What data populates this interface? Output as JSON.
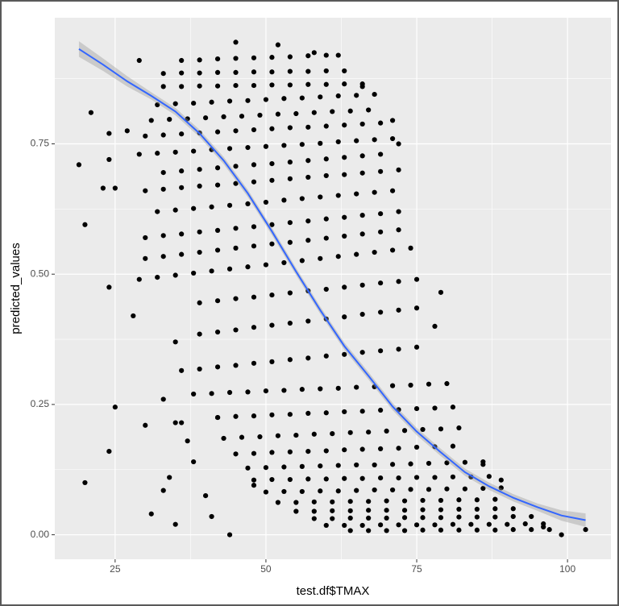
{
  "chart_data": {
    "type": "scatter",
    "xlabel": "test.df$TMAX",
    "ylabel": "predicted_values",
    "xlim": [
      15,
      107.2
    ],
    "ylim": [
      -0.047,
      0.992
    ],
    "xticks": [
      25,
      50,
      75,
      100
    ],
    "yticks": [
      {
        "value": 0,
        "label": "0.00"
      },
      {
        "value": 0.25,
        "label": "0.25"
      },
      {
        "value": 0.5,
        "label": "0.50"
      },
      {
        "value": 0.75,
        "label": "0.75"
      }
    ],
    "minor_xticks": [
      37.5,
      62.5,
      87.5
    ],
    "minor_yticks": [
      0.125,
      0.375,
      0.625,
      0.875
    ],
    "grid": true,
    "point_color": "#000000",
    "series": [
      {
        "x": [
          36,
          39,
          42,
          45,
          48,
          51,
          54,
          57,
          60
        ],
        "values": [
          0.91,
          0.911,
          0.913,
          0.914,
          0.915,
          0.916,
          0.917,
          0.919,
          0.92
        ]
      },
      {
        "x": [
          33,
          36,
          39,
          42,
          45,
          48,
          51,
          54,
          57,
          60,
          63
        ],
        "values": [
          0.885,
          0.886,
          0.886,
          0.887,
          0.887,
          0.888,
          0.888,
          0.889,
          0.889,
          0.89,
          0.89
        ]
      },
      {
        "x": [
          33,
          36,
          39,
          42,
          45,
          48,
          51,
          54,
          57,
          60,
          63,
          66
        ],
        "values": [
          0.86,
          0.86,
          0.861,
          0.861,
          0.862,
          0.862,
          0.863,
          0.863,
          0.864,
          0.864,
          0.865,
          0.865
        ]
      },
      {
        "x": [
          32,
          35,
          38,
          41,
          44,
          47,
          50,
          53,
          56,
          59,
          62,
          65,
          68
        ],
        "values": [
          0.825,
          0.827,
          0.828,
          0.83,
          0.832,
          0.833,
          0.835,
          0.837,
          0.838,
          0.84,
          0.842,
          0.843,
          0.845
        ]
      },
      {
        "x": [
          31,
          34,
          37,
          40,
          43,
          46,
          49,
          52,
          55,
          58,
          61,
          64,
          67
        ],
        "values": [
          0.795,
          0.797,
          0.798,
          0.8,
          0.802,
          0.803,
          0.805,
          0.807,
          0.808,
          0.81,
          0.812,
          0.813,
          0.815
        ]
      },
      {
        "x": [
          30,
          33,
          36,
          39,
          42,
          45,
          48,
          51,
          54,
          57,
          60,
          63,
          66,
          69
        ],
        "values": [
          0.765,
          0.767,
          0.769,
          0.771,
          0.773,
          0.775,
          0.777,
          0.779,
          0.781,
          0.782,
          0.784,
          0.786,
          0.788,
          0.79
        ]
      },
      {
        "x": [
          29,
          32,
          35,
          38,
          41,
          44,
          47,
          50,
          53,
          56,
          59,
          62,
          65,
          68,
          71
        ],
        "values": [
          0.73,
          0.732,
          0.734,
          0.736,
          0.739,
          0.741,
          0.743,
          0.745,
          0.747,
          0.749,
          0.751,
          0.754,
          0.756,
          0.758,
          0.76
        ]
      },
      {
        "x": [
          33,
          36,
          39,
          42,
          45,
          48,
          51,
          54,
          57,
          60,
          63,
          66,
          69
        ],
        "values": [
          0.695,
          0.698,
          0.701,
          0.704,
          0.707,
          0.71,
          0.712,
          0.715,
          0.718,
          0.721,
          0.724,
          0.727,
          0.73
        ]
      },
      {
        "x": [
          30,
          33,
          36,
          39,
          42,
          45,
          48,
          51,
          54,
          57,
          60,
          63,
          66,
          69,
          72
        ],
        "values": [
          0.66,
          0.663,
          0.666,
          0.669,
          0.671,
          0.674,
          0.677,
          0.68,
          0.683,
          0.686,
          0.689,
          0.691,
          0.694,
          0.697,
          0.7
        ]
      },
      {
        "x": [
          32,
          35,
          38,
          41,
          44,
          47,
          50,
          53,
          56,
          59,
          62,
          65,
          68,
          71
        ],
        "values": [
          0.62,
          0.623,
          0.626,
          0.629,
          0.632,
          0.635,
          0.638,
          0.642,
          0.645,
          0.648,
          0.651,
          0.654,
          0.657,
          0.66
        ]
      },
      {
        "x": [
          30,
          33,
          36,
          39,
          42,
          45,
          48,
          51,
          54,
          57,
          60,
          63,
          66,
          69,
          72
        ],
        "values": [
          0.57,
          0.574,
          0.577,
          0.581,
          0.584,
          0.588,
          0.591,
          0.595,
          0.599,
          0.602,
          0.606,
          0.609,
          0.613,
          0.616,
          0.62
        ]
      },
      {
        "x": [
          30,
          33,
          36,
          39,
          42,
          45,
          48,
          51,
          54,
          57,
          60,
          63,
          66,
          69,
          72
        ],
        "values": [
          0.53,
          0.534,
          0.538,
          0.542,
          0.546,
          0.55,
          0.554,
          0.558,
          0.561,
          0.565,
          0.569,
          0.573,
          0.577,
          0.581,
          0.585
        ]
      },
      {
        "x": [
          29,
          32,
          35,
          38,
          41,
          44,
          47,
          50,
          53,
          56,
          59,
          62,
          65,
          68,
          71,
          74
        ],
        "values": [
          0.49,
          0.494,
          0.498,
          0.502,
          0.506,
          0.51,
          0.514,
          0.518,
          0.522,
          0.526,
          0.53,
          0.534,
          0.538,
          0.542,
          0.546,
          0.55
        ]
      },
      {
        "x": [
          39,
          42,
          45,
          48,
          51,
          54,
          57,
          60,
          63,
          66,
          69,
          72,
          75
        ],
        "values": [
          0.445,
          0.449,
          0.453,
          0.456,
          0.46,
          0.464,
          0.468,
          0.471,
          0.475,
          0.479,
          0.483,
          0.486,
          0.49
        ]
      },
      {
        "x": [
          39,
          42,
          45,
          48,
          51,
          54,
          57,
          60,
          63,
          66,
          69,
          72,
          75
        ],
        "values": [
          0.385,
          0.389,
          0.393,
          0.398,
          0.402,
          0.406,
          0.41,
          0.414,
          0.418,
          0.423,
          0.427,
          0.431,
          0.435
        ]
      },
      {
        "x": [
          36,
          39,
          42,
          45,
          48,
          51,
          54,
          57,
          60,
          63,
          66,
          69,
          72,
          75
        ],
        "values": [
          0.315,
          0.318,
          0.322,
          0.325,
          0.329,
          0.332,
          0.336,
          0.339,
          0.343,
          0.346,
          0.35,
          0.353,
          0.356,
          0.36
        ]
      },
      {
        "x": [
          38,
          41,
          44,
          47,
          50,
          53,
          56,
          59,
          62,
          65,
          68,
          71,
          74,
          77,
          80
        ],
        "values": [
          0.27,
          0.271,
          0.273,
          0.274,
          0.276,
          0.277,
          0.279,
          0.28,
          0.281,
          0.283,
          0.284,
          0.286,
          0.287,
          0.289,
          0.29
        ]
      },
      {
        "x": [
          42,
          45,
          48,
          51,
          54,
          57,
          60,
          63,
          66,
          69,
          72,
          75,
          78,
          81
        ],
        "values": [
          0.225,
          0.227,
          0.228,
          0.23,
          0.231,
          0.233,
          0.234,
          0.236,
          0.237,
          0.239,
          0.24,
          0.242,
          0.243,
          0.245
        ]
      },
      {
        "x": [
          43,
          46,
          49,
          52,
          55,
          58,
          61,
          64,
          67,
          70,
          73,
          76,
          79,
          82
        ],
        "values": [
          0.185,
          0.187,
          0.188,
          0.19,
          0.191,
          0.193,
          0.194,
          0.196,
          0.197,
          0.199,
          0.2,
          0.202,
          0.203,
          0.205
        ]
      },
      {
        "x": [
          45,
          48,
          51,
          54,
          57,
          60,
          63,
          66,
          69,
          72,
          75,
          78,
          81
        ],
        "values": [
          0.155,
          0.156,
          0.158,
          0.159,
          0.16,
          0.161,
          0.163,
          0.164,
          0.165,
          0.166,
          0.168,
          0.169,
          0.17
        ]
      },
      {
        "x": [
          47,
          50,
          53,
          56,
          59,
          62,
          65,
          68,
          71,
          74,
          77,
          80,
          83,
          86
        ],
        "values": [
          0.128,
          0.129,
          0.13,
          0.131,
          0.132,
          0.133,
          0.134,
          0.134,
          0.135,
          0.136,
          0.137,
          0.138,
          0.139,
          0.14
        ]
      },
      {
        "x": [
          48,
          51,
          54,
          57,
          60,
          63,
          66,
          69,
          72,
          75,
          78,
          81,
          84,
          87
        ],
        "values": [
          0.105,
          0.106,
          0.106,
          0.107,
          0.107,
          0.108,
          0.108,
          0.109,
          0.109,
          0.11,
          0.11,
          0.111,
          0.111,
          0.112
        ]
      },
      {
        "x": [
          50,
          53,
          56,
          59,
          62,
          65,
          68,
          71,
          74,
          77,
          80,
          83,
          86,
          89
        ],
        "values": [
          0.082,
          0.083,
          0.083,
          0.084,
          0.084,
          0.085,
          0.086,
          0.086,
          0.087,
          0.087,
          0.088,
          0.088,
          0.089,
          0.09
        ]
      },
      {
        "x": [
          52,
          55,
          58,
          61,
          64,
          67,
          70,
          73,
          76,
          79,
          82,
          85,
          88
        ],
        "values": [
          0.062,
          0.062,
          0.063,
          0.063,
          0.064,
          0.064,
          0.065,
          0.065,
          0.066,
          0.066,
          0.067,
          0.067,
          0.068
        ]
      },
      {
        "x": [
          55,
          58,
          61,
          64,
          67,
          70,
          73,
          76,
          79,
          82,
          85,
          88,
          91
        ],
        "values": [
          0.045,
          0.045,
          0.046,
          0.046,
          0.047,
          0.047,
          0.047,
          0.048,
          0.048,
          0.049,
          0.049,
          0.05,
          0.05
        ]
      },
      {
        "x": [
          58,
          61,
          64,
          67,
          70,
          73,
          76,
          79,
          82,
          85,
          88,
          91,
          94
        ],
        "values": [
          0.031,
          0.031,
          0.032,
          0.032,
          0.032,
          0.033,
          0.033,
          0.033,
          0.034,
          0.034,
          0.034,
          0.035,
          0.035
        ]
      },
      {
        "x": [
          60,
          63,
          66,
          69,
          72,
          75,
          78,
          81,
          84,
          87,
          90,
          93,
          96
        ],
        "values": [
          0.018,
          0.018,
          0.018,
          0.019,
          0.019,
          0.019,
          0.019,
          0.02,
          0.02,
          0.02,
          0.02,
          0.021,
          0.021
        ]
      },
      {
        "x": [
          64,
          67,
          70,
          73,
          76,
          79,
          82,
          85,
          88,
          91,
          94,
          97
        ],
        "values": [
          0.008,
          0.008,
          0.008,
          0.008,
          0.009,
          0.009,
          0.009,
          0.009,
          0.009,
          0.01,
          0.01,
          0.01
        ]
      },
      {
        "x": [
          19,
          20,
          20,
          21,
          23,
          24,
          24,
          24,
          24,
          25,
          25,
          27,
          28,
          29,
          30,
          31,
          33,
          33,
          34,
          35,
          35,
          35,
          36,
          37,
          38,
          40,
          41,
          42,
          44,
          45,
          48,
          52,
          58,
          62,
          66,
          71,
          72,
          78,
          79,
          86,
          89,
          99,
          103,
          96
        ],
        "values": [
          0.71,
          0.595,
          0.1,
          0.81,
          0.665,
          0.475,
          0.16,
          0.77,
          0.72,
          0.665,
          0.245,
          0.775,
          0.42,
          0.91,
          0.21,
          0.04,
          0.26,
          0.085,
          0.11,
          0.02,
          0.215,
          0.37,
          0.215,
          0.18,
          0.14,
          0.075,
          0.035,
          0.225,
          0.0,
          0.945,
          0.095,
          0.94,
          0.925,
          0.92,
          0.86,
          0.795,
          0.75,
          0.4,
          0.465,
          0.135,
          0.105,
          0.0,
          0.01,
          0.015
        ]
      }
    ],
    "smooth": {
      "color": "#3366ff",
      "band_color": "#999999",
      "x": [
        19,
        23,
        27,
        31,
        35,
        39,
        43,
        47,
        51,
        55,
        59,
        63,
        67,
        71,
        75,
        79,
        83,
        87,
        91,
        95,
        99,
        103
      ],
      "values": [
        0.932,
        0.902,
        0.87,
        0.842,
        0.812,
        0.77,
        0.718,
        0.655,
        0.582,
        0.505,
        0.431,
        0.362,
        0.305,
        0.246,
        0.198,
        0.158,
        0.12,
        0.093,
        0.071,
        0.053,
        0.037,
        0.028
      ],
      "lower": [
        0.917,
        0.89,
        0.86,
        0.835,
        0.805,
        0.763,
        0.711,
        0.648,
        0.575,
        0.498,
        0.424,
        0.355,
        0.298,
        0.239,
        0.191,
        0.151,
        0.113,
        0.086,
        0.064,
        0.046,
        0.027,
        0.015
      ],
      "upper": [
        0.947,
        0.914,
        0.88,
        0.849,
        0.819,
        0.777,
        0.725,
        0.662,
        0.589,
        0.512,
        0.438,
        0.369,
        0.312,
        0.253,
        0.205,
        0.165,
        0.127,
        0.1,
        0.078,
        0.06,
        0.047,
        0.041
      ]
    }
  }
}
